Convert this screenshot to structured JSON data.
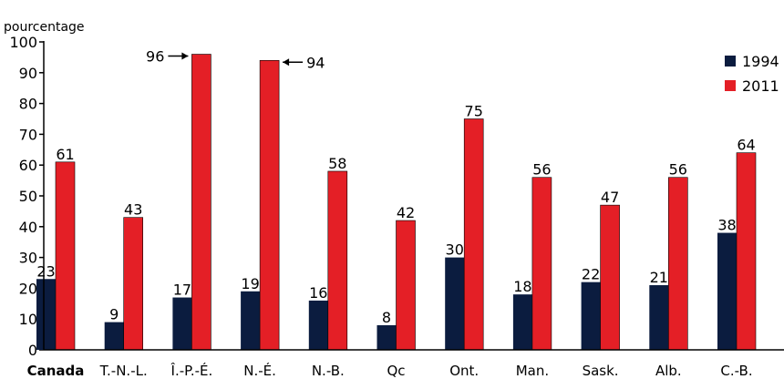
{
  "chart_data": {
    "type": "bar",
    "ylabel": "pourcentage",
    "ylim": [
      0,
      100
    ],
    "yticks": [
      0,
      10,
      20,
      30,
      40,
      50,
      60,
      70,
      80,
      90,
      100
    ],
    "categories": [
      "Canada",
      "T.-N.-L.",
      "Î.-P.-É.",
      "N.-É.",
      "N.-B.",
      "Qc",
      "Ont.",
      "Man.",
      "Sask.",
      "Alb.",
      "C.-B."
    ],
    "series": [
      {
        "name": "1994",
        "color": "#0b1c3f",
        "values": [
          23,
          9,
          17,
          19,
          16,
          8,
          30,
          18,
          22,
          21,
          38
        ]
      },
      {
        "name": "2011",
        "color": "#e41f26",
        "values": [
          61,
          43,
          96,
          94,
          58,
          42,
          75,
          56,
          47,
          56,
          64
        ]
      }
    ],
    "legend_position": "top-right",
    "grid": false
  }
}
